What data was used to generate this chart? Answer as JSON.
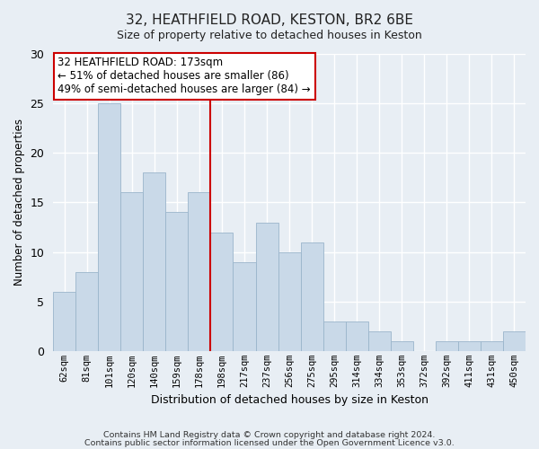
{
  "title": "32, HEATHFIELD ROAD, KESTON, BR2 6BE",
  "subtitle": "Size of property relative to detached houses in Keston",
  "xlabel": "Distribution of detached houses by size in Keston",
  "ylabel": "Number of detached properties",
  "bar_labels": [
    "62sqm",
    "81sqm",
    "101sqm",
    "120sqm",
    "140sqm",
    "159sqm",
    "178sqm",
    "198sqm",
    "217sqm",
    "237sqm",
    "256sqm",
    "275sqm",
    "295sqm",
    "314sqm",
    "334sqm",
    "353sqm",
    "372sqm",
    "392sqm",
    "411sqm",
    "431sqm",
    "450sqm"
  ],
  "bar_values": [
    6,
    8,
    25,
    16,
    18,
    14,
    16,
    12,
    9,
    13,
    10,
    11,
    3,
    3,
    2,
    1,
    0,
    1,
    1,
    1,
    2
  ],
  "bar_color": "#c9d9e8",
  "bar_edgecolor": "#9ab5cb",
  "ylim": [
    0,
    30
  ],
  "yticks": [
    0,
    5,
    10,
    15,
    20,
    25,
    30
  ],
  "vline_color": "#cc0000",
  "vline_pos": 6.5,
  "annotation_title": "32 HEATHFIELD ROAD: 173sqm",
  "annotation_line1": "← 51% of detached houses are smaller (86)",
  "annotation_line2": "49% of semi-detached houses are larger (84) →",
  "annotation_box_facecolor": "#ffffff",
  "annotation_box_edgecolor": "#cc0000",
  "footer1": "Contains HM Land Registry data © Crown copyright and database right 2024.",
  "footer2": "Contains public sector information licensed under the Open Government Licence v3.0.",
  "bg_color": "#e8eef4",
  "plot_bg_color": "#e8eef4",
  "grid_color": "#ffffff",
  "title_fontsize": 11,
  "subtitle_fontsize": 9
}
